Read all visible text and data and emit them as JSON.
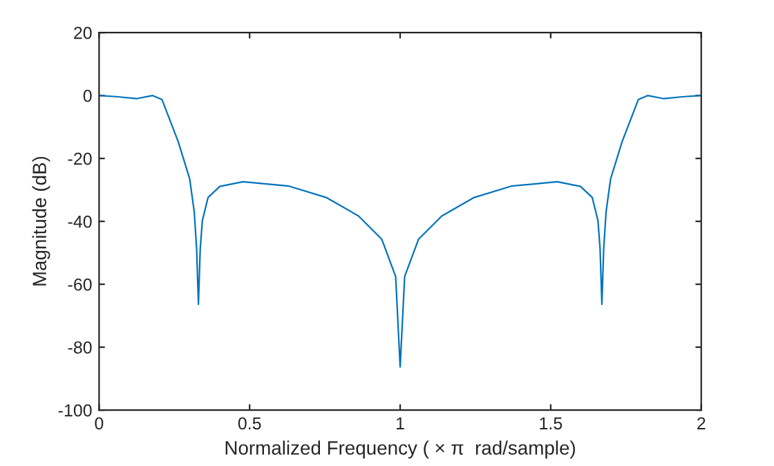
{
  "chart_data": {
    "type": "line",
    "xlabel": "Normalized Frequency ( × π  rad/sample)",
    "ylabel": "Magnitude (dB)",
    "xlim": [
      0,
      2
    ],
    "ylim": [
      -100,
      20
    ],
    "xticks": [
      0,
      0.5,
      1,
      1.5,
      2
    ],
    "yticks": [
      -100,
      -80,
      -60,
      -40,
      -20,
      0,
      20
    ],
    "grid": false,
    "series": [
      {
        "color": "#0072bd",
        "x": [
          0,
          0.063,
          0.124,
          0.178,
          0.209,
          0.263,
          0.301,
          0.316,
          0.324,
          0.33,
          0.336,
          0.343,
          0.362,
          0.401,
          0.478,
          0.631,
          0.754,
          0.862,
          0.939,
          0.985,
          1.0,
          1.015,
          1.061,
          1.138,
          1.246,
          1.369,
          1.522,
          1.599,
          1.638,
          1.657,
          1.664,
          1.67,
          1.676,
          1.684,
          1.699,
          1.737,
          1.791,
          1.822,
          1.876,
          1.937,
          2
        ],
        "values": [
          0,
          -0.4,
          -1.0,
          0,
          -1.3,
          -14.7,
          -26.5,
          -36.9,
          -48.7,
          -66.4,
          -48.7,
          -39.8,
          -32.4,
          -28.9,
          -27.4,
          -28.8,
          -32.4,
          -38.3,
          -45.7,
          -57.5,
          -86.3,
          -57.5,
          -45.7,
          -38.3,
          -32.4,
          -28.8,
          -27.4,
          -28.9,
          -32.4,
          -39.8,
          -48.7,
          -66.4,
          -48.7,
          -36.9,
          -26.5,
          -14.7,
          -1.3,
          0,
          -1.0,
          -0.4,
          0
        ]
      }
    ]
  }
}
